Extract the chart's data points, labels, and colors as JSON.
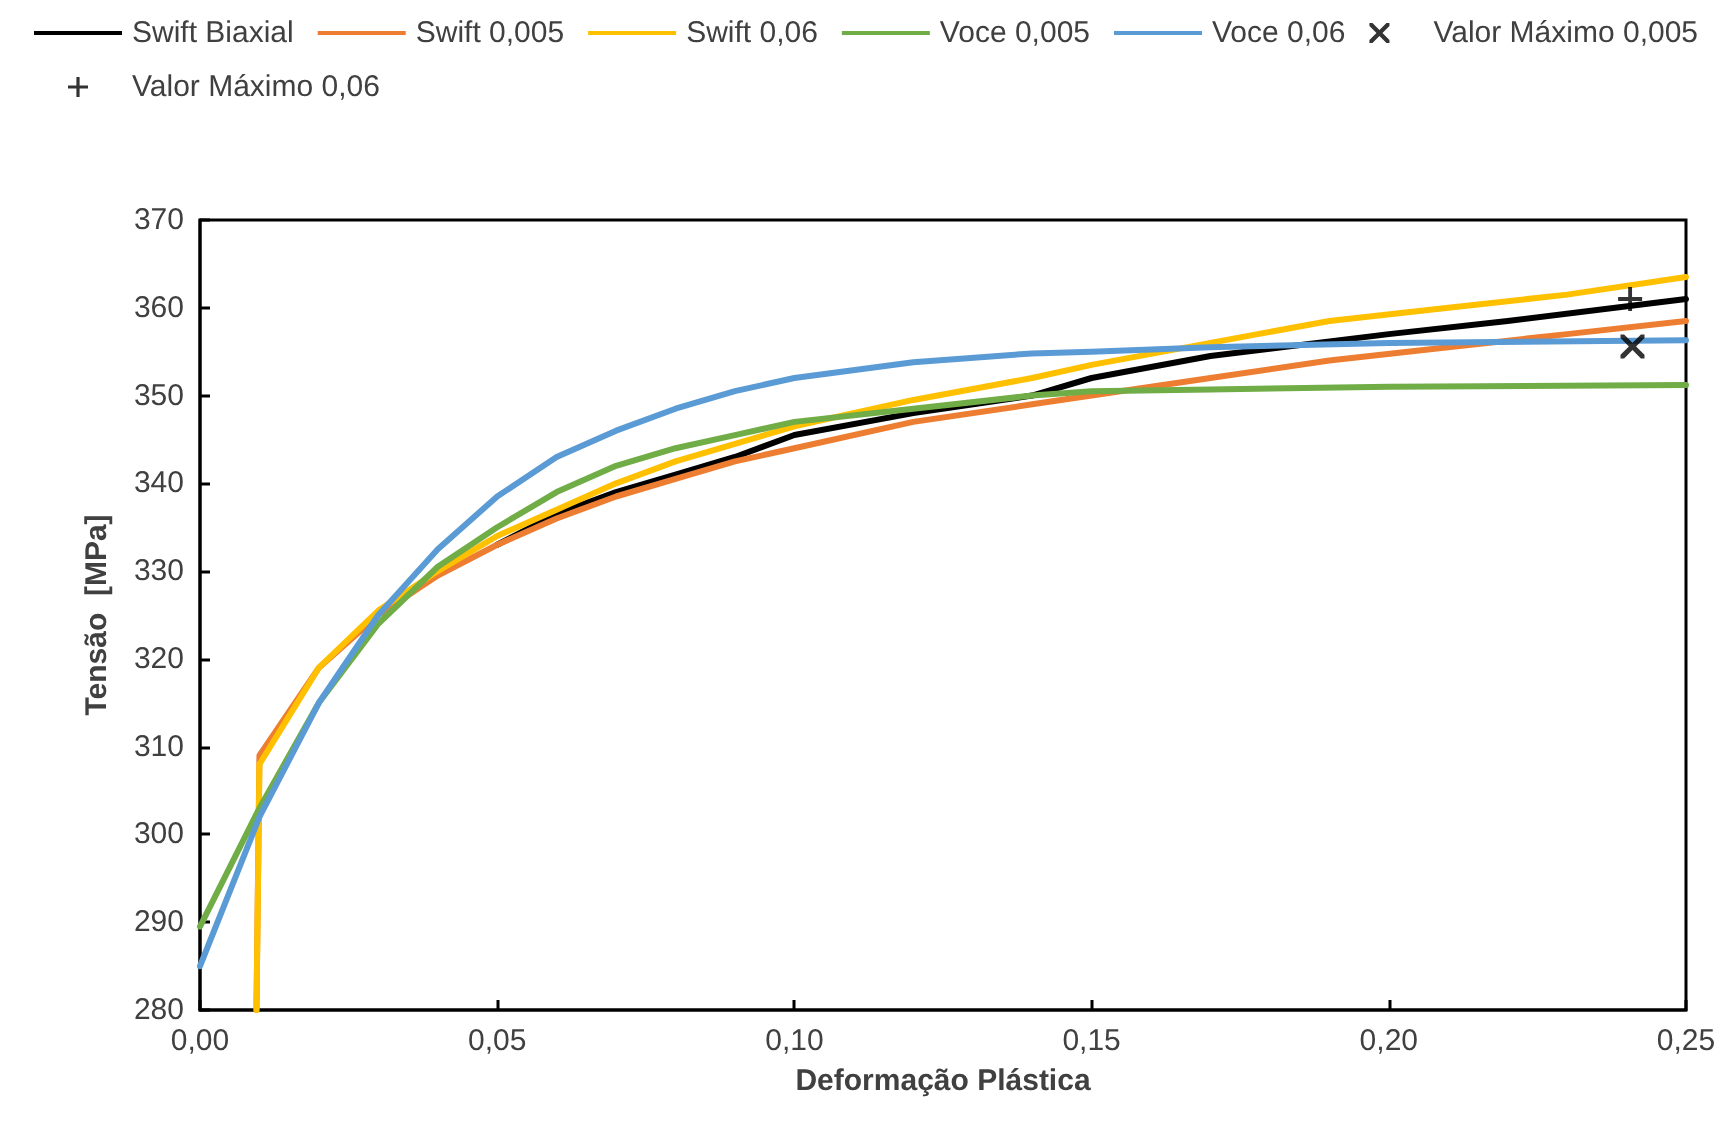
{
  "chart_data": {
    "type": "line",
    "xlabel": "Deformação Plástica",
    "ylabel": "Tensão  [MPa]",
    "xlim": [
      0,
      0.25
    ],
    "xticks": [
      {
        "value": 0,
        "label": "0,00"
      },
      {
        "value": 0.05,
        "label": "0,05"
      },
      {
        "value": 0.1,
        "label": "0,10"
      },
      {
        "value": 0.15,
        "label": "0,15"
      },
      {
        "value": 0.2,
        "label": "0,20"
      },
      {
        "value": 0.25,
        "label": "0,25"
      }
    ],
    "ylim": [
      280,
      370
    ],
    "yticks": [
      280,
      290,
      300,
      310,
      320,
      330,
      340,
      350,
      360,
      370
    ],
    "grid": false,
    "legend": "top",
    "marker": "none",
    "line_style": "solid",
    "series": [
      {
        "name": "Swift Biaxial",
        "color": "#000000",
        "x": [
          0.05,
          0.06,
          0.07,
          0.08,
          0.09,
          0.1,
          0.12,
          0.14,
          0.15,
          0.17,
          0.2,
          0.22,
          0.25
        ],
        "values": [
          333,
          336.5,
          339,
          341,
          343,
          345.5,
          348,
          350,
          352,
          354.5,
          357,
          358.5,
          361
        ]
      },
      {
        "name": "Swift 0,005",
        "color": "#ed7d31",
        "x": [
          0.0095,
          0.01,
          0.02,
          0.03,
          0.04,
          0.05,
          0.06,
          0.07,
          0.08,
          0.09,
          0.1,
          0.12,
          0.14,
          0.15,
          0.17,
          0.19,
          0.21,
          0.23,
          0.25
        ],
        "values": [
          280,
          309,
          319,
          325,
          329.5,
          333,
          336,
          338.5,
          340.5,
          342.5,
          344,
          347,
          349,
          350,
          352,
          354,
          355.5,
          357,
          358.5
        ]
      },
      {
        "name": "Swift 0,06",
        "color": "#ffc000",
        "x": [
          0.0095,
          0.01,
          0.02,
          0.03,
          0.04,
          0.05,
          0.06,
          0.07,
          0.08,
          0.09,
          0.1,
          0.12,
          0.14,
          0.15,
          0.17,
          0.19,
          0.21,
          0.23,
          0.25
        ],
        "values": [
          280,
          308,
          319,
          325.5,
          330,
          334,
          337,
          340,
          342.5,
          344.5,
          346.5,
          349.5,
          352,
          353.5,
          356,
          358.5,
          360,
          361.5,
          363.5
        ]
      },
      {
        "name": "Voce 0,005",
        "color": "#70ad47",
        "x": [
          0,
          0.01,
          0.02,
          0.03,
          0.04,
          0.05,
          0.06,
          0.07,
          0.08,
          0.09,
          0.1,
          0.12,
          0.14,
          0.15,
          0.17,
          0.2,
          0.25
        ],
        "values": [
          289.5,
          303,
          315,
          324,
          330.5,
          335,
          339,
          342,
          344,
          345.5,
          347,
          348.5,
          350,
          350.5,
          350.7,
          351,
          351.2
        ]
      },
      {
        "name": "Voce 0,06",
        "color": "#5b9bd5",
        "x": [
          0,
          0.01,
          0.02,
          0.03,
          0.04,
          0.05,
          0.06,
          0.07,
          0.08,
          0.09,
          0.1,
          0.12,
          0.14,
          0.15,
          0.17,
          0.2,
          0.25
        ],
        "values": [
          285,
          302,
          315,
          325,
          332.5,
          338.5,
          343,
          346,
          348.5,
          350.5,
          352,
          353.8,
          354.8,
          355,
          355.5,
          356,
          356.3
        ]
      },
      {
        "name": "Valor Máximo 0,005",
        "type": "scatter",
        "marker": "cross",
        "color": "#000000",
        "x": [
          0.241
        ],
        "values": [
          355.6
        ]
      },
      {
        "name": "Valor Máximo 0,06",
        "type": "scatter",
        "marker": "plus",
        "color": "#000000",
        "x": [
          0.2406
        ],
        "values": [
          361
        ]
      }
    ]
  }
}
